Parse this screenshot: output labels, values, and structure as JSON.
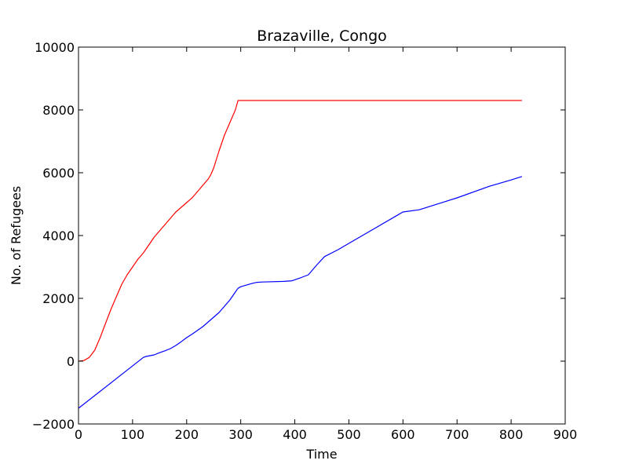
{
  "chart_data": {
    "type": "line",
    "title": "Brazaville, Congo",
    "xlabel": "Time",
    "ylabel": "No. of Refugees",
    "xlim": [
      0,
      900
    ],
    "ylim": [
      -2000,
      10000
    ],
    "xticks": [
      0,
      100,
      200,
      300,
      400,
      500,
      600,
      700,
      800,
      900
    ],
    "yticks": [
      -2000,
      0,
      2000,
      4000,
      6000,
      8000,
      10000
    ],
    "xtick_labels": [
      "0",
      "100",
      "200",
      "300",
      "400",
      "500",
      "600",
      "700",
      "800",
      "900"
    ],
    "ytick_labels": [
      "−2000",
      "0",
      "2000",
      "4000",
      "6000",
      "8000",
      "10000"
    ],
    "grid": false,
    "legend": "none",
    "series": [
      {
        "color": "#ff0000",
        "x": [
          0,
          10,
          20,
          30,
          40,
          50,
          60,
          70,
          80,
          90,
          100,
          110,
          120,
          130,
          140,
          150,
          160,
          170,
          180,
          190,
          200,
          210,
          220,
          230,
          240,
          245,
          250,
          260,
          270,
          280,
          290,
          295,
          300,
          310,
          400,
          500,
          600,
          700,
          800,
          820
        ],
        "y": [
          0,
          20,
          120,
          350,
          750,
          1200,
          1650,
          2050,
          2450,
          2750,
          3000,
          3250,
          3450,
          3700,
          3950,
          4150,
          4350,
          4550,
          4750,
          4900,
          5050,
          5200,
          5400,
          5600,
          5800,
          5950,
          6150,
          6700,
          7200,
          7600,
          8000,
          8300,
          8300,
          8300,
          8300,
          8300,
          8300,
          8300,
          8300,
          8300
        ]
      },
      {
        "color": "#0000ff",
        "x": [
          0,
          120,
          125,
          140,
          150,
          160,
          170,
          180,
          190,
          200,
          210,
          220,
          230,
          240,
          250,
          260,
          270,
          280,
          290,
          295,
          300,
          310,
          320,
          330,
          340,
          380,
          395,
          410,
          425,
          440,
          455,
          480,
          500,
          550,
          600,
          630,
          700,
          760,
          800,
          820
        ],
        "y": [
          -1500,
          120,
          150,
          200,
          270,
          330,
          400,
          500,
          620,
          750,
          860,
          980,
          1100,
          1250,
          1400,
          1550,
          1750,
          1950,
          2200,
          2320,
          2370,
          2420,
          2470,
          2510,
          2520,
          2540,
          2560,
          2650,
          2750,
          3050,
          3330,
          3550,
          3750,
          4250,
          4750,
          4820,
          5200,
          5570,
          5770,
          5880
        ]
      }
    ]
  }
}
